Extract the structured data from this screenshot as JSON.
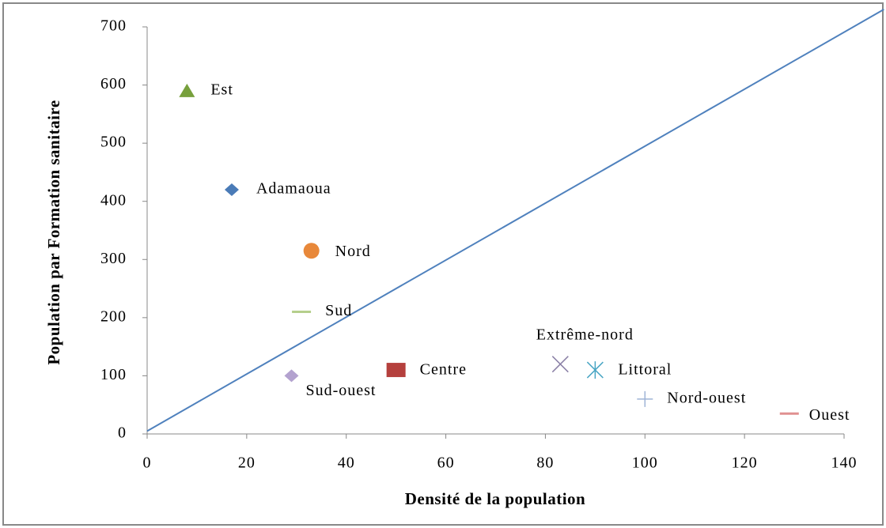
{
  "chart_data": {
    "type": "scatter",
    "x_label": "Densité de la population",
    "y_label": "Population par Formation sanitaire",
    "xlim": [
      0,
      140
    ],
    "ylim": [
      0,
      700
    ],
    "xticks": [
      0,
      20,
      40,
      60,
      80,
      100,
      120,
      140
    ],
    "yticks": [
      0,
      100,
      200,
      300,
      400,
      500,
      600,
      700
    ],
    "series": [
      {
        "name": "Est",
        "color": "#77a03c",
        "marker": "triangle",
        "x": [
          8
        ],
        "values": [
          590
        ]
      },
      {
        "name": "Adamaoua",
        "color": "#4a7bb7",
        "marker": "diamond",
        "x": [
          17
        ],
        "values": [
          420
        ]
      },
      {
        "name": "Nord",
        "color": "#e8883a",
        "marker": "circle",
        "x": [
          33
        ],
        "values": [
          315
        ]
      },
      {
        "name": "Sud",
        "color": "#b5cf8c",
        "marker": "dash",
        "x": [
          31
        ],
        "values": [
          210
        ]
      },
      {
        "name": "Sud-ouest",
        "color": "#b3a2cf",
        "marker": "diamond",
        "x": [
          29
        ],
        "values": [
          100
        ]
      },
      {
        "name": "Centre",
        "color": "#b5403d",
        "marker": "square",
        "x": [
          50
        ],
        "values": [
          110
        ]
      },
      {
        "name": "Extrême-nord",
        "color": "#8a7fa6",
        "marker": "x",
        "x": [
          83
        ],
        "values": [
          120
        ]
      },
      {
        "name": "Littoral",
        "color": "#4aa6c4",
        "marker": "asterisk",
        "x": [
          90
        ],
        "values": [
          110
        ]
      },
      {
        "name": "Nord-ouest",
        "color": "#9fb4d6",
        "marker": "plus",
        "x": [
          100
        ],
        "values": [
          60
        ]
      },
      {
        "name": "Ouest",
        "color": "#e09090",
        "marker": "dash",
        "x": [
          129
        ],
        "values": [
          35
        ]
      }
    ],
    "trend_line": {
      "color": "#4f81bd",
      "x": [
        0,
        148
      ],
      "values": [
        5,
        730
      ]
    }
  }
}
